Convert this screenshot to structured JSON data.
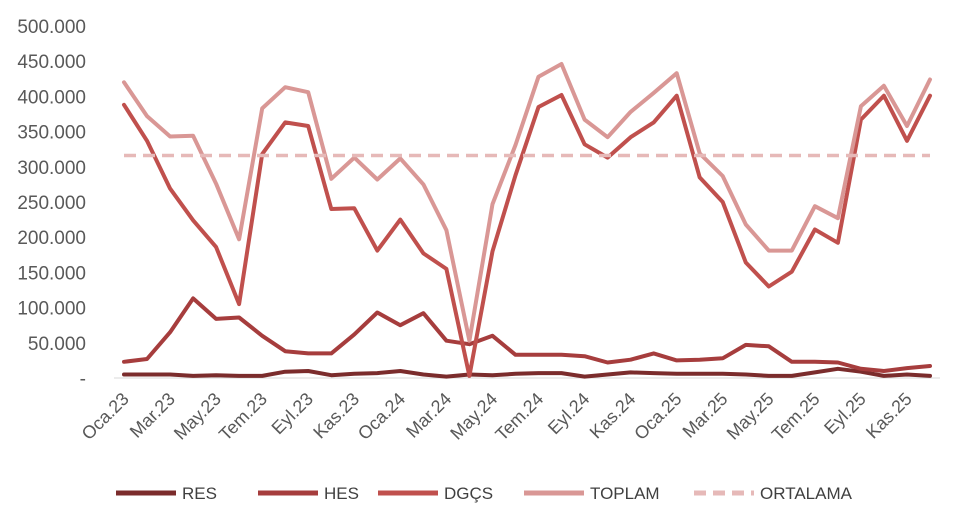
{
  "chart_data": {
    "type": "line",
    "title": "",
    "xlabel": "",
    "ylabel": "",
    "ylim": [
      0,
      500000
    ],
    "y_tick_labels": [
      "-",
      "50.000",
      "100.000",
      "150.000",
      "200.000",
      "250.000",
      "300.000",
      "350.000",
      "400.000",
      "450.000",
      "500.000"
    ],
    "x": [
      "Oca.23",
      "Şub.23",
      "Mar.23",
      "Nis.23",
      "May.23",
      "Haz.23",
      "Tem.23",
      "Ağu.23",
      "Eyl.23",
      "Eki.23",
      "Kas.23",
      "Ara.23",
      "Oca.24",
      "Şub.24",
      "Mar.24",
      "Nis.24",
      "May.24",
      "Haz.24",
      "Tem.24",
      "Ağu.24",
      "Eyl.24",
      "Eki.24",
      "Kas.24",
      "Ara.24",
      "Oca.25",
      "Şub.25",
      "Mar.25",
      "Nis.25",
      "May.25",
      "Haz.25",
      "Tem.25",
      "Ağu.25",
      "Eyl.25",
      "Eki.25",
      "Kas.25",
      "Ara.25"
    ],
    "x_tick_labels": [
      "Oca.23",
      "Mar.23",
      "May.23",
      "Tem.23",
      "Eyl.23",
      "Kas.23",
      "Oca.24",
      "Mar.24",
      "May.24",
      "Tem.24",
      "Eyl.24",
      "Kas.24",
      "Oca.25",
      "Mar.25",
      "May.25",
      "Tem.25",
      "Eyl.25",
      "Kas.25"
    ],
    "x_tick_every": 2,
    "grid": false,
    "legend_position": "bottom",
    "series": [
      {
        "name": "RES",
        "color": "#7b2c2c",
        "dashed": false,
        "values": [
          5000,
          5000,
          5000,
          3000,
          4000,
          3000,
          3000,
          9000,
          10000,
          4000,
          6000,
          7000,
          10000,
          5000,
          2000,
          5000,
          4000,
          6000,
          7000,
          7000,
          2000,
          5000,
          8000,
          7000,
          6000,
          6000,
          6000,
          5000,
          3000,
          3000,
          8000,
          13000,
          9000,
          3000,
          5000,
          3000
        ]
      },
      {
        "name": "HES",
        "color": "#a63d3d",
        "dashed": false,
        "values": [
          23000,
          27000,
          65000,
          113000,
          84000,
          86000,
          60000,
          38000,
          35000,
          35000,
          62000,
          93000,
          75000,
          92000,
          53000,
          48000,
          60000,
          33000,
          33000,
          33000,
          31000,
          22000,
          26000,
          35000,
          25000,
          26000,
          28000,
          47000,
          45000,
          23000,
          23000,
          22000,
          13000,
          10000,
          14000,
          17000
        ]
      },
      {
        "name": "DGÇS",
        "color": "#c0504d",
        "dashed": false,
        "values": [
          388000,
          337000,
          269000,
          224000,
          186000,
          105000,
          318000,
          363000,
          358000,
          240000,
          241000,
          181000,
          225000,
          177000,
          155000,
          3000,
          180000,
          288000,
          385000,
          402000,
          332000,
          313000,
          342000,
          363000,
          401000,
          285000,
          250000,
          164000,
          130000,
          151000,
          211000,
          192000,
          367000,
          401000,
          337000,
          401000
        ]
      },
      {
        "name": "TOPLAM",
        "color": "#d99795",
        "dashed": false,
        "values": [
          420000,
          372000,
          343000,
          344000,
          276000,
          197000,
          383000,
          413000,
          406000,
          283000,
          313000,
          282000,
          312000,
          275000,
          210000,
          53000,
          247000,
          331000,
          428000,
          446000,
          367000,
          342000,
          378000,
          405000,
          433000,
          319000,
          287000,
          218000,
          181000,
          181000,
          244000,
          227000,
          386000,
          415000,
          358000,
          424000
        ]
      },
      {
        "name": "ORTALAMA",
        "color": "#e6b9b8",
        "dashed": true,
        "values": [
          316000,
          316000,
          316000,
          316000,
          316000,
          316000,
          316000,
          316000,
          316000,
          316000,
          316000,
          316000,
          316000,
          316000,
          316000,
          316000,
          316000,
          316000,
          316000,
          316000,
          316000,
          316000,
          316000,
          316000,
          316000,
          316000,
          316000,
          316000,
          316000,
          316000,
          316000,
          316000,
          316000,
          316000,
          316000,
          316000
        ]
      }
    ]
  }
}
